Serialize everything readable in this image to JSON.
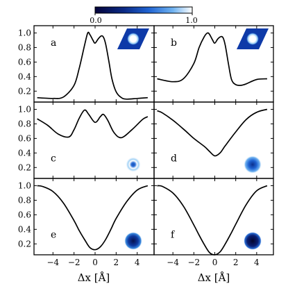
{
  "colorbar": {
    "min_label": "0.0",
    "max_label": "1.0",
    "colors": [
      "#04043a",
      "#0b2a86",
      "#1f63d2",
      "#6fb2f0",
      "#ffffff"
    ]
  },
  "xlabel": "Δx [Å]",
  "chart_data": [
    {
      "type": "line",
      "panel": "a",
      "x_ticks": [
        -4,
        -2,
        0,
        2,
        4
      ],
      "y_ticks": [
        0.2,
        0.4,
        0.6,
        0.8,
        1.0
      ],
      "xlim": [
        -5.8,
        5.6
      ],
      "ylim": [
        0.05,
        1.1
      ],
      "x": [
        -5.5,
        -4.0,
        -3.0,
        -2.0,
        -1.5,
        -1.0,
        -0.7,
        -0.5,
        -0.2,
        0.0,
        0.3,
        0.6,
        0.8,
        1.0,
        1.3,
        1.6,
        2.0,
        2.5,
        3.0,
        4.0,
        5.0
      ],
      "y": [
        0.11,
        0.1,
        0.12,
        0.28,
        0.52,
        0.83,
        1.0,
        0.98,
        0.9,
        0.86,
        0.92,
        0.96,
        0.94,
        0.85,
        0.62,
        0.37,
        0.19,
        0.11,
        0.09,
        0.1,
        0.11
      ],
      "inset": "rhombus-ring"
    },
    {
      "type": "line",
      "panel": "b",
      "x_ticks": [
        -4,
        -2,
        0,
        2,
        4
      ],
      "y_ticks": [],
      "xlim": [
        -5.8,
        5.6
      ],
      "ylim": [
        0.05,
        1.1
      ],
      "x": [
        -5.5,
        -4.0,
        -3.0,
        -2.0,
        -1.5,
        -1.0,
        -0.7,
        -0.5,
        -0.2,
        0.0,
        0.3,
        0.6,
        0.8,
        1.0,
        1.3,
        1.6,
        2.0,
        2.5,
        3.0,
        4.0,
        5.0
      ],
      "y": [
        0.37,
        0.33,
        0.37,
        0.58,
        0.8,
        0.95,
        1.0,
        0.98,
        0.9,
        0.86,
        0.92,
        0.95,
        0.93,
        0.83,
        0.58,
        0.36,
        0.29,
        0.28,
        0.3,
        0.36,
        0.37
      ],
      "inset": "rhombus-ring"
    },
    {
      "type": "line",
      "panel": "c",
      "x_ticks": [
        -4,
        -2,
        0,
        2,
        4
      ],
      "y_ticks": [
        0.2,
        0.4,
        0.6,
        0.8,
        1.0
      ],
      "xlim": [
        -5.8,
        5.6
      ],
      "ylim": [
        0.05,
        1.1
      ],
      "x": [
        -5.5,
        -4.5,
        -3.5,
        -2.5,
        -2.0,
        -1.5,
        -1.0,
        -0.6,
        0.0,
        0.5,
        0.8,
        1.2,
        1.8,
        2.5,
        3.5,
        4.5,
        5.0
      ],
      "y": [
        0.87,
        0.78,
        0.66,
        0.62,
        0.72,
        0.88,
        0.99,
        0.93,
        0.82,
        0.9,
        0.93,
        0.85,
        0.68,
        0.61,
        0.72,
        0.86,
        0.9
      ],
      "inset": "ring"
    },
    {
      "type": "line",
      "panel": "d",
      "x_ticks": [
        -4,
        -2,
        0,
        2,
        4
      ],
      "y_ticks": [],
      "xlim": [
        -5.8,
        5.6
      ],
      "ylim": [
        0.05,
        1.1
      ],
      "x": [
        -5.5,
        -5.0,
        -4.0,
        -3.0,
        -2.0,
        -1.0,
        -0.5,
        0.0,
        0.5,
        1.0,
        2.0,
        3.0,
        4.0,
        5.0
      ],
      "y": [
        0.98,
        0.95,
        0.85,
        0.73,
        0.6,
        0.49,
        0.42,
        0.36,
        0.4,
        0.5,
        0.69,
        0.86,
        0.96,
        1.0
      ],
      "inset": "disc-soft"
    },
    {
      "type": "line",
      "panel": "e",
      "x_ticks": [
        -4,
        -2,
        0,
        2,
        4
      ],
      "y_ticks": [
        0.2,
        0.4,
        0.6,
        0.8,
        1.0
      ],
      "xlim": [
        -5.8,
        5.6
      ],
      "ylim": [
        0.05,
        1.1
      ],
      "x": [
        -5.5,
        -5.0,
        -4.0,
        -3.0,
        -2.0,
        -1.5,
        -1.0,
        -0.5,
        0.0,
        0.5,
        1.0,
        1.5,
        2.0,
        3.0,
        4.0,
        5.0
      ],
      "y": [
        1.0,
        0.99,
        0.92,
        0.76,
        0.52,
        0.38,
        0.26,
        0.15,
        0.12,
        0.16,
        0.26,
        0.4,
        0.55,
        0.78,
        0.94,
        1.0
      ],
      "inset": "disc"
    },
    {
      "type": "line",
      "panel": "f",
      "x_ticks": [
        -4,
        -2,
        0,
        2,
        4
      ],
      "y_ticks": [],
      "xlim": [
        -5.8,
        5.6
      ],
      "ylim": [
        0.05,
        1.1
      ],
      "x": [
        -5.5,
        -5.0,
        -4.0,
        -3.0,
        -2.0,
        -1.5,
        -1.0,
        -0.5,
        0.0,
        0.5,
        1.0,
        1.5,
        2.0,
        3.0,
        4.0,
        5.0
      ],
      "y": [
        1.0,
        0.99,
        0.9,
        0.72,
        0.46,
        0.32,
        0.19,
        0.08,
        0.05,
        0.09,
        0.2,
        0.33,
        0.47,
        0.74,
        0.93,
        1.0
      ],
      "inset": "disc-dark"
    }
  ]
}
